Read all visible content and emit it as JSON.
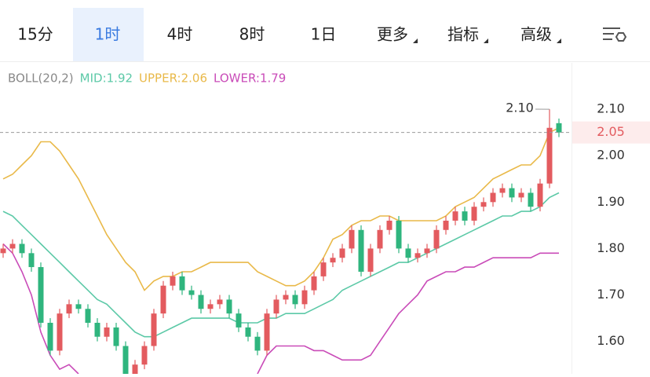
{
  "tabs": [
    "15分",
    "1时",
    "4时",
    "8时",
    "1日",
    "更多",
    "指标",
    "高级"
  ],
  "selected_tab": 1,
  "chart_data": {
    "type": "candlestick",
    "indicator": {
      "name": "BOLL(20,2)",
      "mid": "MID:1.92",
      "upper": "UPPER:2.06",
      "lower": "LOWER:1.79"
    },
    "ylim": [
      1.53,
      2.2
    ],
    "yticks": [
      {
        "value": 1.6,
        "label": "1.60"
      },
      {
        "value": 1.7,
        "label": "1.70"
      },
      {
        "value": 1.8,
        "label": "1.80"
      },
      {
        "value": 1.9,
        "label": "1.90"
      },
      {
        "value": 2.0,
        "label": "2.00"
      },
      {
        "value": 2.1,
        "label": "2.10"
      }
    ],
    "current_price": {
      "value": 2.05,
      "label": "2.05"
    },
    "max_label": "2.10",
    "up_color": "#e35b5f",
    "down_color": "#2fb57e",
    "open": [
      1.79,
      1.8,
      1.81,
      1.79,
      1.76,
      1.64,
      1.58,
      1.66,
      1.68,
      1.67,
      1.64,
      1.61,
      1.63,
      1.59,
      1.53,
      1.55,
      1.59,
      1.66,
      1.72,
      1.74,
      1.71,
      1.7,
      1.67,
      1.68,
      1.69,
      1.66,
      1.63,
      1.61,
      1.58,
      1.66,
      1.69,
      1.7,
      1.68,
      1.71,
      1.74,
      1.77,
      1.78,
      1.8,
      1.84,
      1.75,
      1.8,
      1.84,
      1.86,
      1.8,
      1.78,
      1.79,
      1.8,
      1.84,
      1.86,
      1.88,
      1.86,
      1.89,
      1.9,
      1.92,
      1.93,
      1.91,
      1.92,
      1.89,
      1.94,
      2.07
    ],
    "high": [
      1.81,
      1.82,
      1.82,
      1.8,
      1.77,
      1.65,
      1.67,
      1.69,
      1.69,
      1.68,
      1.65,
      1.64,
      1.64,
      1.6,
      1.56,
      1.6,
      1.67,
      1.73,
      1.75,
      1.75,
      1.72,
      1.71,
      1.69,
      1.7,
      1.7,
      1.67,
      1.64,
      1.62,
      1.67,
      1.7,
      1.71,
      1.71,
      1.72,
      1.75,
      1.78,
      1.79,
      1.81,
      1.85,
      1.85,
      1.81,
      1.85,
      1.87,
      1.87,
      1.81,
      1.8,
      1.81,
      1.85,
      1.87,
      1.89,
      1.89,
      1.9,
      1.91,
      1.93,
      1.94,
      1.94,
      1.93,
      1.93,
      1.95,
      2.1,
      2.08
    ],
    "low": [
      1.78,
      1.79,
      1.78,
      1.75,
      1.63,
      1.57,
      1.57,
      1.65,
      1.66,
      1.63,
      1.6,
      1.6,
      1.58,
      1.52,
      1.52,
      1.54,
      1.58,
      1.65,
      1.71,
      1.7,
      1.69,
      1.66,
      1.66,
      1.67,
      1.65,
      1.62,
      1.6,
      1.57,
      1.57,
      1.65,
      1.68,
      1.67,
      1.67,
      1.7,
      1.73,
      1.76,
      1.77,
      1.79,
      1.74,
      1.74,
      1.79,
      1.83,
      1.79,
      1.77,
      1.77,
      1.78,
      1.79,
      1.83,
      1.85,
      1.85,
      1.85,
      1.88,
      1.89,
      1.91,
      1.9,
      1.9,
      1.88,
      1.88,
      1.93,
      2.04
    ],
    "close": [
      1.8,
      1.81,
      1.79,
      1.76,
      1.64,
      1.58,
      1.66,
      1.68,
      1.67,
      1.64,
      1.61,
      1.63,
      1.59,
      1.53,
      1.55,
      1.59,
      1.66,
      1.72,
      1.74,
      1.71,
      1.7,
      1.67,
      1.68,
      1.69,
      1.66,
      1.63,
      1.61,
      1.58,
      1.66,
      1.69,
      1.7,
      1.68,
      1.71,
      1.74,
      1.77,
      1.78,
      1.8,
      1.84,
      1.75,
      1.8,
      1.84,
      1.86,
      1.8,
      1.78,
      1.79,
      1.8,
      1.84,
      1.86,
      1.88,
      1.86,
      1.89,
      1.9,
      1.92,
      1.93,
      1.91,
      1.92,
      1.89,
      1.94,
      2.06,
      2.05
    ],
    "series": [
      {
        "name": "UPPER",
        "color": "#e9b949",
        "values": [
          1.95,
          1.96,
          1.98,
          2.0,
          2.03,
          2.03,
          2.01,
          1.98,
          1.95,
          1.91,
          1.87,
          1.83,
          1.8,
          1.77,
          1.75,
          1.71,
          1.73,
          1.74,
          1.74,
          1.75,
          1.75,
          1.76,
          1.77,
          1.77,
          1.77,
          1.77,
          1.77,
          1.75,
          1.74,
          1.73,
          1.72,
          1.72,
          1.73,
          1.75,
          1.78,
          1.82,
          1.83,
          1.85,
          1.86,
          1.86,
          1.87,
          1.87,
          1.86,
          1.86,
          1.86,
          1.86,
          1.86,
          1.87,
          1.89,
          1.9,
          1.91,
          1.93,
          1.95,
          1.96,
          1.97,
          1.98,
          1.98,
          2.0,
          2.05,
          2.06
        ]
      },
      {
        "name": "MID",
        "color": "#5cc9a7",
        "values": [
          1.88,
          1.87,
          1.85,
          1.83,
          1.81,
          1.79,
          1.77,
          1.75,
          1.73,
          1.71,
          1.69,
          1.68,
          1.66,
          1.64,
          1.62,
          1.61,
          1.61,
          1.62,
          1.63,
          1.64,
          1.65,
          1.65,
          1.65,
          1.65,
          1.65,
          1.64,
          1.64,
          1.64,
          1.65,
          1.65,
          1.66,
          1.66,
          1.66,
          1.67,
          1.68,
          1.69,
          1.71,
          1.72,
          1.73,
          1.74,
          1.75,
          1.76,
          1.77,
          1.77,
          1.78,
          1.79,
          1.8,
          1.81,
          1.82,
          1.83,
          1.84,
          1.85,
          1.86,
          1.87,
          1.87,
          1.88,
          1.88,
          1.89,
          1.91,
          1.92
        ]
      },
      {
        "name": "LOWER",
        "color": "#c94bb8",
        "values": [
          1.81,
          1.79,
          1.75,
          1.7,
          1.62,
          1.57,
          1.54,
          1.55,
          1.53,
          null,
          null,
          null,
          null,
          null,
          null,
          null,
          null,
          null,
          null,
          null,
          null,
          null,
          null,
          null,
          null,
          null,
          null,
          1.53,
          1.57,
          1.59,
          1.59,
          1.59,
          1.59,
          1.58,
          1.58,
          1.57,
          1.56,
          1.56,
          1.56,
          1.57,
          1.6,
          1.63,
          1.66,
          1.68,
          1.7,
          1.73,
          1.74,
          1.75,
          1.75,
          1.76,
          1.76,
          1.77,
          1.78,
          1.78,
          1.78,
          1.78,
          1.78,
          1.79,
          1.79,
          1.79
        ]
      }
    ]
  }
}
